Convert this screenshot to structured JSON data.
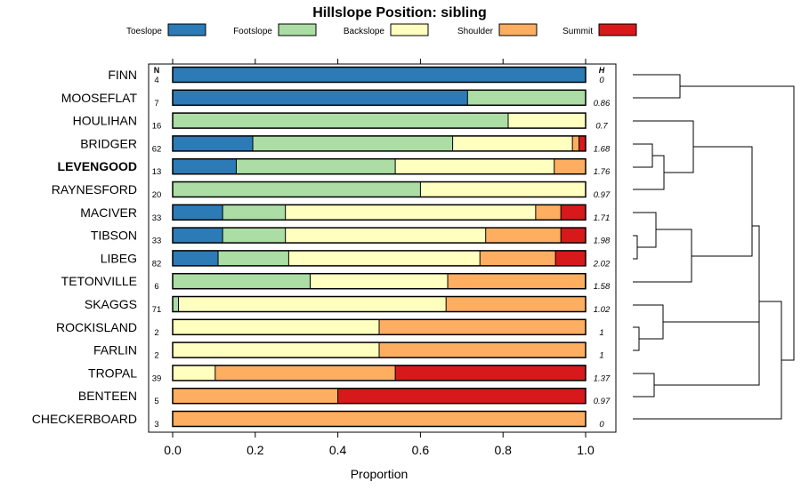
{
  "chart_data": {
    "type": "bar",
    "title": "Hillslope Position: sibling",
    "xlabel": "Proportion",
    "ylabel": "",
    "xlim": [
      0,
      1
    ],
    "x_ticks": [
      "0.0",
      "0.2",
      "0.4",
      "0.6",
      "0.8",
      "1.0"
    ],
    "n_header": "N",
    "h_header": "H",
    "highlighted_category": "LEVENGOOD",
    "legend_position": "top",
    "dendrogram": true,
    "series": [
      {
        "name": "Toeslope",
        "color": "#2c7bb6"
      },
      {
        "name": "Footslope",
        "color": "#abdda4"
      },
      {
        "name": "Backslope",
        "color": "#ffffbf"
      },
      {
        "name": "Shoulder",
        "color": "#fdae61"
      },
      {
        "name": "Summit",
        "color": "#d7191c"
      }
    ],
    "categories": [
      {
        "label": "FINN",
        "n": "4",
        "h": "0",
        "values": [
          1.0,
          0,
          0,
          0,
          0
        ]
      },
      {
        "label": "MOOSEFLAT",
        "n": "7",
        "h": "0.86",
        "values": [
          0.714,
          0.286,
          0,
          0,
          0
        ]
      },
      {
        "label": "HOULIHAN",
        "n": "16",
        "h": "0.7",
        "values": [
          0,
          0.8125,
          0.1875,
          0,
          0
        ]
      },
      {
        "label": "BRIDGER",
        "n": "62",
        "h": "1.68",
        "values": [
          0.194,
          0.484,
          0.29,
          0.016,
          0.016
        ]
      },
      {
        "label": "LEVENGOOD",
        "n": "13",
        "h": "1.76",
        "values": [
          0.154,
          0.385,
          0.385,
          0.077,
          0
        ]
      },
      {
        "label": "RAYNESFORD",
        "n": "20",
        "h": "0.97",
        "values": [
          0,
          0.6,
          0.4,
          0,
          0
        ]
      },
      {
        "label": "MACIVER",
        "n": "33",
        "h": "1.71",
        "values": [
          0.121,
          0.152,
          0.606,
          0.061,
          0.061
        ]
      },
      {
        "label": "TIBSON",
        "n": "33",
        "h": "1.98",
        "values": [
          0.121,
          0.152,
          0.485,
          0.182,
          0.061
        ]
      },
      {
        "label": "LIBEG",
        "n": "82",
        "h": "2.02",
        "values": [
          0.11,
          0.171,
          0.463,
          0.183,
          0.073
        ]
      },
      {
        "label": "TETONVILLE",
        "n": "6",
        "h": "1.58",
        "values": [
          0,
          0.333,
          0.333,
          0.333,
          0
        ]
      },
      {
        "label": "SKAGGS",
        "n": "71",
        "h": "1.02",
        "values": [
          0,
          0.014,
          0.648,
          0.338,
          0
        ]
      },
      {
        "label": "ROCKISLAND",
        "n": "2",
        "h": "1",
        "values": [
          0,
          0,
          0.5,
          0.5,
          0
        ]
      },
      {
        "label": "FARLIN",
        "n": "2",
        "h": "1",
        "values": [
          0,
          0,
          0.5,
          0.5,
          0
        ]
      },
      {
        "label": "TROPAL",
        "n": "39",
        "h": "1.37",
        "values": [
          0,
          0,
          0.103,
          0.436,
          0.462
        ]
      },
      {
        "label": "BENTEEN",
        "n": "5",
        "h": "0.97",
        "values": [
          0,
          0,
          0,
          0.4,
          0.6
        ]
      },
      {
        "label": "CHECKERBOARD",
        "n": "3",
        "h": "0",
        "values": [
          0,
          0,
          0,
          1.0,
          0
        ]
      }
    ]
  }
}
